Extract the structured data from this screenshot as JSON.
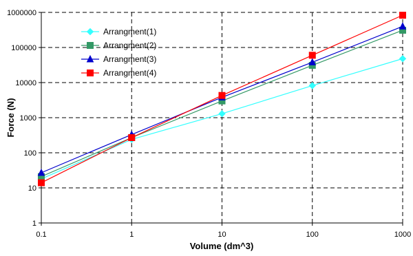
{
  "chart_data": {
    "type": "line",
    "title": "",
    "xlabel": "Volume (dm^3)",
    "ylabel": "Force (N)",
    "xscale": "log",
    "yscale": "log",
    "xlim": [
      0.1,
      1000
    ],
    "ylim": [
      1,
      1000000
    ],
    "x": [
      0.1,
      1,
      10,
      100,
      1000
    ],
    "x_tick_labels": [
      "0.1",
      "1",
      "10",
      "100",
      "1000"
    ],
    "y_tick_labels": [
      "1",
      "10",
      "100",
      "1000",
      "10000",
      "100000",
      "1000000"
    ],
    "grid": true,
    "legend_position": "top-left",
    "series": [
      {
        "name": "Arrangment(1)",
        "color": "#33ffff",
        "marker": "diamond",
        "values": [
          18,
          240,
          1300,
          8200,
          48000
        ]
      },
      {
        "name": "Arrangment(2)",
        "color": "#339966",
        "marker": "square",
        "values": [
          21,
          270,
          3000,
          31000,
          310000
        ]
      },
      {
        "name": "Arrangment(3)",
        "color": "#0000cc",
        "marker": "triangle",
        "values": [
          27,
          330,
          3800,
          38000,
          400000
        ]
      },
      {
        "name": "Arrangment(4)",
        "color": "#ff0000",
        "marker": "square",
        "values": [
          14,
          270,
          4300,
          60000,
          830000
        ]
      }
    ]
  }
}
